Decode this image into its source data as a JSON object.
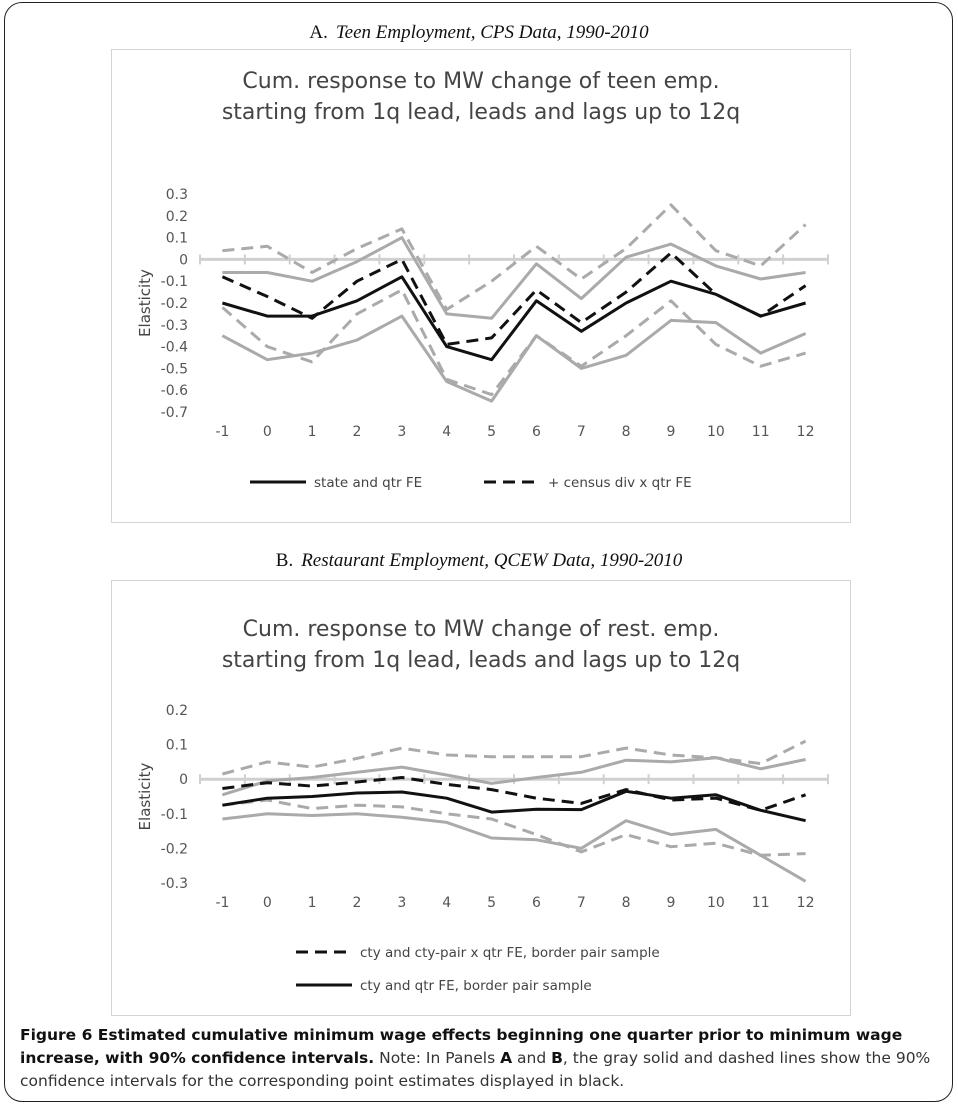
{
  "panels": [
    {
      "letter": "A.",
      "heading": "Teen Employment, CPS Data, 1990-2010",
      "chart_title_lines": [
        "Cum. response to MW change of teen emp.",
        "starting from 1q lead, leads and lags up to 12q"
      ],
      "legend": [
        {
          "label": "state and qtr FE",
          "style": "solid"
        },
        {
          "label": "+ census div x qtr FE",
          "style": "dashed"
        }
      ]
    },
    {
      "letter": "B.",
      "heading": "Restaurant Employment, QCEW Data, 1990-2010",
      "chart_title_lines": [
        "Cum. response to MW change of rest. emp.",
        "starting from 1q lead, leads and lags up to 12q"
      ],
      "legend": [
        {
          "label": "cty and cty-pair x qtr FE, border pair sample",
          "style": "dashed"
        },
        {
          "label": "cty and qtr FE, border pair sample",
          "style": "solid"
        }
      ]
    }
  ],
  "chart_data": [
    {
      "type": "line",
      "title": "Cum. response to MW change of teen emp. starting from 1q lead, leads and lags up to 12q",
      "xlabel": "",
      "ylabel": "Elasticity",
      "x": [
        -1,
        0,
        1,
        2,
        3,
        4,
        5,
        6,
        7,
        8,
        9,
        10,
        11,
        12
      ],
      "ylim": [
        -0.7,
        0.3
      ],
      "yticks": [
        "0.3",
        "0.2",
        "0.1",
        "0",
        "-0.1",
        "-0.2",
        "-0.3",
        "-0.4",
        "-0.5",
        "-0.6",
        "-0.7"
      ],
      "grid": false,
      "legend_position": "bottom",
      "zero_line_color": "#d0d0d0",
      "series": [
        {
          "name": "state and qtr FE",
          "color": "#111111",
          "style": "solid",
          "values": [
            -0.2,
            -0.26,
            -0.26,
            -0.19,
            -0.08,
            -0.4,
            -0.46,
            -0.19,
            -0.33,
            -0.2,
            -0.1,
            -0.16,
            -0.26,
            -0.2
          ]
        },
        {
          "name": "+ census div x qtr FE",
          "color": "#111111",
          "style": "dashed",
          "values": [
            -0.08,
            -0.17,
            -0.27,
            -0.1,
            0.0,
            -0.39,
            -0.36,
            -0.14,
            -0.29,
            -0.15,
            0.03,
            -0.16,
            -0.26,
            -0.12
          ]
        },
        {
          "color": "#aaaaaa",
          "style": "solid",
          "values": [
            -0.06,
            -0.06,
            -0.1,
            -0.01,
            0.1,
            -0.25,
            -0.27,
            -0.02,
            -0.18,
            0.01,
            0.07,
            -0.03,
            -0.09,
            -0.06
          ]
        },
        {
          "color": "#aaaaaa",
          "style": "solid",
          "values": [
            -0.35,
            -0.46,
            -0.43,
            -0.37,
            -0.26,
            -0.56,
            -0.65,
            -0.35,
            -0.5,
            -0.44,
            -0.28,
            -0.29,
            -0.43,
            -0.34
          ]
        },
        {
          "color": "#aaaaaa",
          "style": "dashed",
          "values": [
            0.04,
            0.06,
            -0.06,
            0.05,
            0.14,
            -0.23,
            -0.1,
            0.06,
            -0.09,
            0.05,
            0.25,
            0.04,
            -0.03,
            0.16
          ]
        },
        {
          "color": "#aaaaaa",
          "style": "dashed",
          "values": [
            -0.22,
            -0.4,
            -0.47,
            -0.25,
            -0.14,
            -0.55,
            -0.62,
            -0.35,
            -0.49,
            -0.35,
            -0.19,
            -0.39,
            -0.49,
            -0.43
          ]
        }
      ]
    },
    {
      "type": "line",
      "title": "Cum. response to MW change of rest. emp. starting from 1q lead, leads and lags up to 12q",
      "xlabel": "",
      "ylabel": "Elasticity",
      "x": [
        -1,
        0,
        1,
        2,
        3,
        4,
        5,
        6,
        7,
        8,
        9,
        10,
        11,
        12
      ],
      "ylim": [
        -0.3,
        0.2
      ],
      "yticks": [
        "0.2",
        "0.1",
        "0",
        "-0.1",
        "-0.2",
        "-0.3"
      ],
      "grid": false,
      "legend_position": "bottom",
      "zero_line_color": "#d0d0d0",
      "series": [
        {
          "name": "cty and cty-pair x qtr FE, border pair sample",
          "color": "#111111",
          "style": "dashed",
          "values": [
            -0.027,
            -0.01,
            -0.02,
            -0.008,
            0.005,
            -0.015,
            -0.03,
            -0.055,
            -0.07,
            -0.03,
            -0.06,
            -0.055,
            -0.09,
            -0.045
          ]
        },
        {
          "name": "cty and qtr FE, border pair sample",
          "color": "#111111",
          "style": "solid",
          "values": [
            -0.075,
            -0.055,
            -0.05,
            -0.04,
            -0.037,
            -0.055,
            -0.095,
            -0.087,
            -0.088,
            -0.035,
            -0.055,
            -0.045,
            -0.09,
            -0.12
          ]
        },
        {
          "color": "#aaaaaa",
          "style": "solid",
          "values": [
            -0.045,
            -0.005,
            0.005,
            0.02,
            0.035,
            0.012,
            -0.012,
            0.005,
            0.02,
            0.055,
            0.05,
            0.062,
            0.03,
            0.057
          ]
        },
        {
          "color": "#aaaaaa",
          "style": "solid",
          "values": [
            -0.115,
            -0.1,
            -0.105,
            -0.1,
            -0.11,
            -0.125,
            -0.17,
            -0.175,
            -0.2,
            -0.12,
            -0.16,
            -0.145,
            -0.22,
            -0.295
          ]
        },
        {
          "color": "#aaaaaa",
          "style": "dashed",
          "values": [
            0.015,
            0.05,
            0.035,
            0.06,
            0.09,
            0.07,
            0.065,
            0.065,
            0.065,
            0.09,
            0.07,
            0.062,
            0.045,
            0.11
          ]
        },
        {
          "color": "#aaaaaa",
          "style": "dashed",
          "values": [
            -0.075,
            -0.06,
            -0.085,
            -0.075,
            -0.08,
            -0.1,
            -0.115,
            -0.16,
            -0.21,
            -0.16,
            -0.195,
            -0.185,
            -0.22,
            -0.215
          ]
        }
      ]
    }
  ],
  "caption": {
    "bold": "Figure 6 Estimated cumulative minimum wage effects beginning one quarter prior to minimum wage increase, with 90% confidence intervals.",
    "note_prefix": "Note: In Panels ",
    "panel_a": "A",
    "and": " and ",
    "panel_b": "B",
    "note_rest": ", the gray solid and dashed lines show the 90% confidence intervals for the corresponding point estimates displayed in black."
  }
}
